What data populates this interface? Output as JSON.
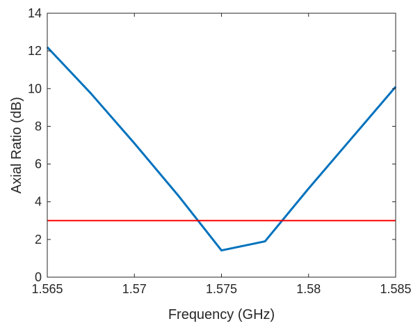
{
  "chart_data": {
    "type": "line",
    "xlabel": "Frequency (GHz)",
    "ylabel": "Axial Ratio (dB)",
    "xlim": [
      1.565,
      1.585
    ],
    "ylim": [
      0,
      14
    ],
    "x_ticks": [
      1.565,
      1.57,
      1.575,
      1.58,
      1.585
    ],
    "x_tick_labels": [
      "1.565",
      "1.57",
      "1.575",
      "1.58",
      "1.585"
    ],
    "y_ticks": [
      0,
      2,
      4,
      6,
      8,
      10,
      12,
      14
    ],
    "y_tick_labels": [
      "0",
      "2",
      "4",
      "6",
      "8",
      "10",
      "12",
      "14"
    ],
    "grid": false,
    "series": [
      {
        "color": "#0072BD",
        "x": [
          1.565,
          1.5675,
          1.57,
          1.5725,
          1.575,
          1.5775,
          1.58,
          1.5825,
          1.585
        ],
        "y": [
          12.2,
          9.75,
          7.1,
          4.35,
          1.42,
          1.9,
          4.7,
          7.4,
          10.1
        ]
      },
      {
        "color": "#FF0000",
        "x": [
          1.565,
          1.585
        ],
        "y": [
          3,
          3
        ]
      }
    ]
  }
}
